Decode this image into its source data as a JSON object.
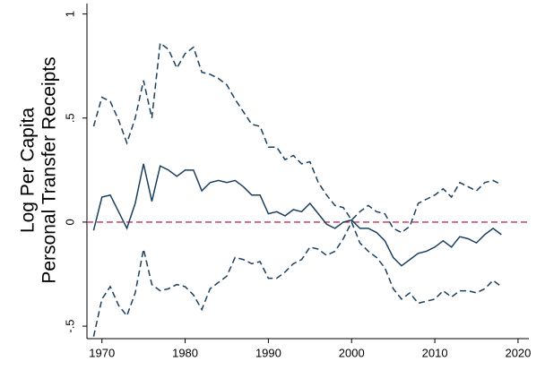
{
  "chart_data": {
    "type": "line",
    "y_label": [
      "Log Per Capita",
      "Personal Transfer Receipts"
    ],
    "x": [
      1969,
      1970,
      1971,
      1972,
      1973,
      1974,
      1975,
      1976,
      1977,
      1978,
      1979,
      1980,
      1981,
      1982,
      1983,
      1984,
      1985,
      1986,
      1987,
      1988,
      1989,
      1990,
      1991,
      1992,
      1993,
      1994,
      1995,
      1996,
      1997,
      1998,
      1999,
      2000,
      2001,
      2002,
      2003,
      2004,
      2005,
      2006,
      2007,
      2008,
      2009,
      2010,
      2011,
      2012,
      2013,
      2014,
      2015,
      2016,
      2017,
      2018
    ],
    "series": [
      {
        "color": "#1a3f5f",
        "dash": false,
        "values": [
          -0.04,
          0.12,
          0.13,
          0.05,
          -0.03,
          0.09,
          0.28,
          0.1,
          0.27,
          0.25,
          0.22,
          0.25,
          0.25,
          0.15,
          0.19,
          0.2,
          0.19,
          0.2,
          0.17,
          0.13,
          0.13,
          0.04,
          0.05,
          0.03,
          0.06,
          0.05,
          0.09,
          0.04,
          -0.01,
          -0.03,
          0.0,
          0.01,
          -0.03,
          -0.03,
          -0.05,
          -0.09,
          -0.17,
          -0.21,
          -0.18,
          -0.15,
          -0.14,
          -0.12,
          -0.09,
          -0.12,
          -0.07,
          -0.08,
          -0.1,
          -0.06,
          -0.03,
          -0.06
        ]
      },
      {
        "color": "#1a3f5f",
        "dash": true,
        "values": [
          0.46,
          0.6,
          0.58,
          0.49,
          0.38,
          0.5,
          0.68,
          0.5,
          0.86,
          0.83,
          0.74,
          0.81,
          0.84,
          0.72,
          0.71,
          0.69,
          0.66,
          0.59,
          0.53,
          0.47,
          0.46,
          0.36,
          0.36,
          0.3,
          0.32,
          0.28,
          0.29,
          0.19,
          0.13,
          0.08,
          0.07,
          0.01,
          0.05,
          0.08,
          0.05,
          0.04,
          -0.03,
          -0.05,
          -0.02,
          0.09,
          0.11,
          0.13,
          0.16,
          0.12,
          0.19,
          0.17,
          0.15,
          0.19,
          0.2,
          0.18
        ]
      },
      {
        "color": "#1a3f5f",
        "dash": true,
        "values": [
          -0.55,
          -0.37,
          -0.31,
          -0.4,
          -0.45,
          -0.34,
          -0.13,
          -0.3,
          -0.33,
          -0.32,
          -0.3,
          -0.31,
          -0.35,
          -0.42,
          -0.32,
          -0.29,
          -0.26,
          -0.17,
          -0.18,
          -0.2,
          -0.19,
          -0.27,
          -0.27,
          -0.24,
          -0.2,
          -0.18,
          -0.12,
          -0.13,
          -0.16,
          -0.14,
          -0.08,
          0.0,
          -0.1,
          -0.14,
          -0.17,
          -0.22,
          -0.32,
          -0.37,
          -0.34,
          -0.39,
          -0.38,
          -0.37,
          -0.33,
          -0.36,
          -0.33,
          -0.33,
          -0.34,
          -0.32,
          -0.28,
          -0.31
        ]
      }
    ],
    "reference_line": {
      "value": 0,
      "color": "#c0305a",
      "dash": true
    },
    "xlim": [
      1968.2,
      2021.3
    ],
    "xticks": [
      1970,
      1980,
      1990,
      2000,
      2010,
      2020
    ],
    "ylim": [
      -0.56,
      1.05
    ],
    "yticks": [
      {
        "value": -0.5,
        "label": "-.5"
      },
      0,
      {
        "value": 0.5,
        "label": ".5"
      },
      1
    ],
    "grid": false
  }
}
